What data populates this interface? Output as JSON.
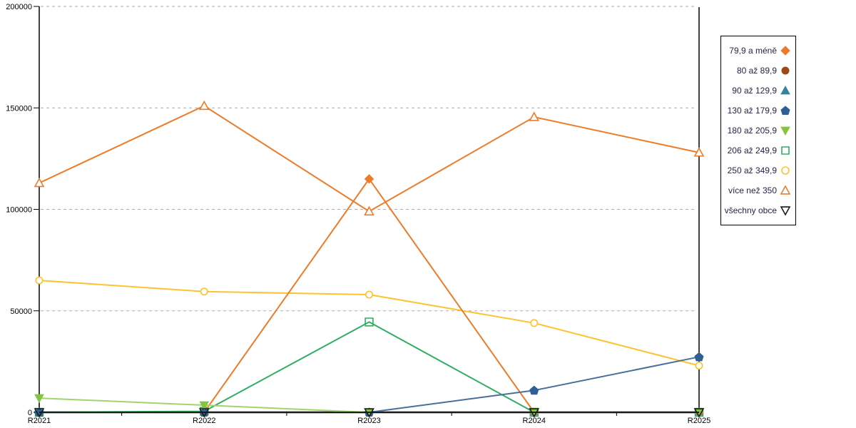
{
  "chart_data": {
    "type": "line",
    "title": "",
    "xlabel": "",
    "ylabel": "",
    "categories": [
      "R2021",
      "R2022",
      "R2023",
      "R2024",
      "R2025"
    ],
    "y_ticks": [
      0,
      50000,
      100000,
      150000,
      200000
    ],
    "y_tick_labels": [
      "0",
      "50000",
      "100000",
      "150000",
      "200000"
    ],
    "ylim": [
      0,
      200000
    ],
    "grid": "horizontal-dashed",
    "grid_color": "#ababab",
    "axis_color": "#000000",
    "legend_position": "right",
    "legend_text_color": "#242447",
    "series": [
      {
        "name": "79,9 a méně",
        "marker": "diamond",
        "filled": true,
        "color": "#EE7B28",
        "values": [
          0,
          0,
          115000,
          0,
          0
        ]
      },
      {
        "name": "80 až 89,9",
        "marker": "circle",
        "filled": true,
        "color": "#9C4A12",
        "values": [
          0,
          0,
          0,
          0,
          0
        ]
      },
      {
        "name": "90 až 129,9",
        "marker": "triangle-up",
        "filled": true,
        "color": "#31859C",
        "values": [
          0,
          0,
          0,
          0,
          0
        ]
      },
      {
        "name": "130 až 179,9",
        "marker": "pentagon",
        "filled": true,
        "color": "#2F5F95",
        "line_color": "#4A6F9E",
        "values": [
          0,
          0,
          0,
          10800,
          27300
        ]
      },
      {
        "name": "180 až 205,9",
        "marker": "triangle-down",
        "filled": true,
        "color": "#84C440",
        "line_color": "#A2D46A",
        "values": [
          7000,
          3500,
          0,
          0,
          0
        ]
      },
      {
        "name": "206 až 249,9",
        "marker": "square",
        "filled": false,
        "color": "#30AD63",
        "values": [
          0,
          500,
          44500,
          0,
          0
        ]
      },
      {
        "name": "250 až 349,9",
        "marker": "circle",
        "filled": false,
        "color": "#FDC22D",
        "values": [
          65000,
          59500,
          58000,
          44000,
          23000
        ]
      },
      {
        "name": "více než 350",
        "marker": "triangle-up",
        "filled": false,
        "color": "#EE7B28",
        "values": [
          113000,
          151000,
          99000,
          145500,
          128000
        ]
      },
      {
        "name": "všechny obce",
        "marker": "triangle-down",
        "filled": false,
        "color": "#1A1A1A",
        "values": [
          0,
          0,
          0,
          0,
          0
        ]
      }
    ],
    "draw_order": [
      1,
      2,
      5,
      6,
      0,
      7,
      3,
      4,
      8
    ]
  }
}
